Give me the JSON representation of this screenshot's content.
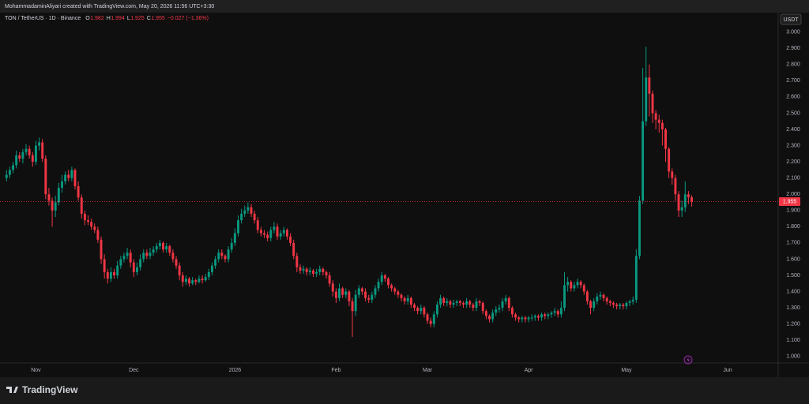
{
  "header": {
    "attribution": "MohammadaminAliyari created with TradingView.com, May 20, 2026 11:56 UTC+3:30"
  },
  "footer": {
    "brand": "TradingView"
  },
  "chart_data": {
    "type": "candlestick",
    "title": "TON / TetherUS · 1D · Binance",
    "legend_labels": [
      "O",
      "H",
      "L",
      "C"
    ],
    "change_label": "−0.027 (−1.36%)",
    "currency": "USDT",
    "up_color": "#089981",
    "down_color": "#f23645",
    "grid": false,
    "xlim": [
      -2,
      236.5
    ],
    "xticks": [
      {
        "value": 9,
        "label": "Nov"
      },
      {
        "value": 39,
        "label": "Dec"
      },
      {
        "value": 70,
        "label": "2026"
      },
      {
        "value": 101,
        "label": "Feb"
      },
      {
        "value": 129,
        "label": "Mar"
      },
      {
        "value": 160,
        "label": "Apr"
      },
      {
        "value": 190,
        "label": "May"
      },
      {
        "value": 221,
        "label": "Jun"
      }
    ],
    "ylim": [
      0.96,
      3.12
    ],
    "yticks": [
      {
        "value": 1,
        "label": "1.000"
      },
      {
        "value": 1.1,
        "label": "1.100"
      },
      {
        "value": 1.2,
        "label": "1.200"
      },
      {
        "value": 1.3,
        "label": "1.300"
      },
      {
        "value": 1.4,
        "label": "1.400"
      },
      {
        "value": 1.5,
        "label": "1.500"
      },
      {
        "value": 1.6,
        "label": "1.600"
      },
      {
        "value": 1.7,
        "label": "1.700"
      },
      {
        "value": 1.8,
        "label": "1.800"
      },
      {
        "value": 1.9,
        "label": "1.900"
      },
      {
        "value": 2,
        "label": "2.000"
      },
      {
        "value": 2.1,
        "label": "2.100"
      },
      {
        "value": 2.2,
        "label": "2.200"
      },
      {
        "value": 2.3,
        "label": "2.300"
      },
      {
        "value": 2.4,
        "label": "2.400"
      },
      {
        "value": 2.5,
        "label": "2.500"
      },
      {
        "value": 2.6,
        "label": "2.600"
      },
      {
        "value": 2.7,
        "label": "2.700"
      },
      {
        "value": 2.8,
        "label": "2.800"
      },
      {
        "value": 2.9,
        "label": "2.900"
      },
      {
        "value": 3,
        "label": "3.000"
      }
    ],
    "open": [
      2.1,
      2.12,
      2.15,
      2.18,
      2.24,
      2.22,
      2.26,
      2.28,
      2.24,
      2.2,
      2.3,
      2.32,
      2.22,
      2.0,
      1.96,
      1.9,
      1.95,
      2.04,
      2.08,
      2.12,
      2.1,
      2.15,
      2.05,
      1.98,
      1.88,
      1.84,
      1.83,
      1.8,
      1.78,
      1.72,
      1.6,
      1.52,
      1.48,
      1.52,
      1.5,
      1.56,
      1.6,
      1.62,
      1.64,
      1.58,
      1.52,
      1.55,
      1.6,
      1.64,
      1.62,
      1.64,
      1.66,
      1.68,
      1.7,
      1.66,
      1.68,
      1.64,
      1.6,
      1.56,
      1.5,
      1.46,
      1.48,
      1.45,
      1.47,
      1.46,
      1.48,
      1.47,
      1.49,
      1.52,
      1.56,
      1.6,
      1.64,
      1.62,
      1.6,
      1.66,
      1.7,
      1.76,
      1.84,
      1.88,
      1.9,
      1.92,
      1.88,
      1.84,
      1.78,
      1.76,
      1.75,
      1.73,
      1.78,
      1.8,
      1.74,
      1.76,
      1.78,
      1.74,
      1.7,
      1.62,
      1.55,
      1.53,
      1.54,
      1.52,
      1.53,
      1.51,
      1.52,
      1.54,
      1.52,
      1.5,
      1.45,
      1.4,
      1.36,
      1.42,
      1.38,
      1.4,
      1.34,
      1.28,
      1.38,
      1.42,
      1.4,
      1.36,
      1.35,
      1.38,
      1.42,
      1.46,
      1.5,
      1.48,
      1.44,
      1.42,
      1.4,
      1.38,
      1.36,
      1.34,
      1.36,
      1.32,
      1.3,
      1.28,
      1.3,
      1.26,
      1.22,
      1.2,
      1.26,
      1.32,
      1.36,
      1.33,
      1.34,
      1.32,
      1.33,
      1.34,
      1.33,
      1.32,
      1.34,
      1.32,
      1.3,
      1.34,
      1.33,
      1.28,
      1.25,
      1.23,
      1.27,
      1.29,
      1.3,
      1.34,
      1.36,
      1.3,
      1.26,
      1.24,
      1.23,
      1.24,
      1.23,
      1.24,
      1.24,
      1.25,
      1.24,
      1.26,
      1.25,
      1.26,
      1.27,
      1.28,
      1.26,
      1.3,
      1.44,
      1.46,
      1.42,
      1.44,
      1.46,
      1.44,
      1.4,
      1.34,
      1.3,
      1.34,
      1.37,
      1.38,
      1.36,
      1.34,
      1.33,
      1.32,
      1.31,
      1.32,
      1.31,
      1.33,
      1.34,
      1.35,
      1.62,
      1.96,
      2.45,
      2.72,
      2.62,
      2.5,
      2.46,
      2.44,
      2.4,
      2.28,
      2.14,
      2.1,
      2.0,
      1.9,
      1.92,
      2.0,
      1.982
    ],
    "high": [
      2.15,
      2.17,
      2.2,
      2.27,
      2.26,
      2.28,
      2.31,
      2.3,
      2.26,
      2.33,
      2.35,
      2.34,
      2.24,
      2.04,
      1.98,
      1.99,
      2.07,
      2.12,
      2.14,
      2.15,
      2.17,
      2.16,
      2.08,
      2.0,
      1.9,
      1.87,
      1.85,
      1.82,
      1.8,
      1.74,
      1.63,
      1.54,
      1.55,
      1.54,
      1.59,
      1.62,
      1.64,
      1.67,
      1.66,
      1.6,
      1.58,
      1.63,
      1.66,
      1.66,
      1.67,
      1.68,
      1.7,
      1.72,
      1.71,
      1.7,
      1.69,
      1.66,
      1.62,
      1.58,
      1.52,
      1.5,
      1.49,
      1.49,
      1.48,
      1.5,
      1.5,
      1.51,
      1.54,
      1.58,
      1.62,
      1.66,
      1.66,
      1.63,
      1.68,
      1.73,
      1.79,
      1.87,
      1.91,
      1.93,
      1.95,
      1.94,
      1.9,
      1.86,
      1.8,
      1.78,
      1.77,
      1.8,
      1.83,
      1.82,
      1.78,
      1.8,
      1.79,
      1.76,
      1.72,
      1.64,
      1.57,
      1.56,
      1.55,
      1.55,
      1.54,
      1.54,
      1.56,
      1.55,
      1.53,
      1.52,
      1.47,
      1.42,
      1.45,
      1.43,
      1.42,
      1.41,
      1.36,
      1.41,
      1.44,
      1.43,
      1.42,
      1.38,
      1.4,
      1.44,
      1.48,
      1.52,
      1.51,
      1.49,
      1.45,
      1.43,
      1.41,
      1.39,
      1.37,
      1.38,
      1.37,
      1.33,
      1.31,
      1.32,
      1.31,
      1.27,
      1.24,
      1.28,
      1.34,
      1.38,
      1.37,
      1.36,
      1.35,
      1.35,
      1.35,
      1.35,
      1.34,
      1.36,
      1.35,
      1.33,
      1.36,
      1.35,
      1.34,
      1.29,
      1.26,
      1.29,
      1.31,
      1.32,
      1.36,
      1.38,
      1.37,
      1.31,
      1.27,
      1.25,
      1.25,
      1.25,
      1.25,
      1.26,
      1.26,
      1.26,
      1.27,
      1.27,
      1.27,
      1.28,
      1.3,
      1.29,
      1.34,
      1.52,
      1.49,
      1.47,
      1.46,
      1.48,
      1.47,
      1.45,
      1.41,
      1.35,
      1.36,
      1.39,
      1.4,
      1.39,
      1.37,
      1.35,
      1.34,
      1.33,
      1.33,
      1.33,
      1.34,
      1.35,
      1.37,
      1.66,
      1.99,
      2.78,
      2.91,
      2.8,
      2.64,
      2.52,
      2.49,
      2.46,
      2.41,
      2.29,
      2.16,
      2.12,
      2.02,
      1.96,
      2.08,
      2.02,
      1.994
    ],
    "low": [
      2.08,
      2.1,
      2.13,
      2.16,
      2.2,
      2.19,
      2.24,
      2.22,
      2.17,
      2.18,
      2.27,
      2.2,
      1.97,
      1.93,
      1.8,
      1.86,
      1.93,
      2.01,
      2.06,
      2.08,
      2.08,
      2.03,
      1.96,
      1.85,
      1.81,
      1.81,
      1.78,
      1.76,
      1.7,
      1.57,
      1.48,
      1.45,
      1.46,
      1.48,
      1.48,
      1.54,
      1.58,
      1.6,
      1.55,
      1.49,
      1.5,
      1.53,
      1.58,
      1.6,
      1.6,
      1.62,
      1.64,
      1.66,
      1.64,
      1.64,
      1.62,
      1.58,
      1.54,
      1.47,
      1.43,
      1.44,
      1.43,
      1.44,
      1.44,
      1.45,
      1.45,
      1.46,
      1.47,
      1.5,
      1.54,
      1.58,
      1.6,
      1.58,
      1.58,
      1.64,
      1.68,
      1.74,
      1.82,
      1.86,
      1.88,
      1.86,
      1.82,
      1.76,
      1.74,
      1.73,
      1.71,
      1.71,
      1.76,
      1.72,
      1.72,
      1.74,
      1.72,
      1.68,
      1.6,
      1.52,
      1.51,
      1.51,
      1.5,
      1.5,
      1.49,
      1.49,
      1.5,
      1.5,
      1.48,
      1.43,
      1.37,
      1.33,
      1.34,
      1.36,
      1.36,
      1.31,
      1.12,
      1.25,
      1.36,
      1.38,
      1.34,
      1.33,
      1.33,
      1.36,
      1.4,
      1.44,
      1.46,
      1.42,
      1.4,
      1.38,
      1.36,
      1.34,
      1.32,
      1.32,
      1.3,
      1.28,
      1.26,
      1.26,
      1.24,
      1.2,
      1.18,
      1.18,
      1.24,
      1.3,
      1.31,
      1.31,
      1.3,
      1.3,
      1.31,
      1.31,
      1.3,
      1.3,
      1.3,
      1.28,
      1.28,
      1.31,
      1.26,
      1.23,
      1.21,
      1.21,
      1.25,
      1.27,
      1.28,
      1.32,
      1.28,
      1.24,
      1.22,
      1.21,
      1.21,
      1.21,
      1.21,
      1.22,
      1.22,
      1.22,
      1.22,
      1.23,
      1.23,
      1.24,
      1.25,
      1.24,
      1.24,
      1.28,
      1.4,
      1.4,
      1.4,
      1.42,
      1.42,
      1.38,
      1.32,
      1.26,
      1.28,
      1.32,
      1.35,
      1.34,
      1.32,
      1.31,
      1.3,
      1.29,
      1.29,
      1.29,
      1.29,
      1.31,
      1.32,
      1.33,
      1.6,
      1.94,
      2.42,
      2.48,
      2.44,
      2.4,
      2.38,
      2.3,
      2.2,
      2.1,
      2.06,
      1.96,
      1.86,
      1.86,
      1.89,
      1.94,
      1.925
    ],
    "close": [
      2.12,
      2.15,
      2.18,
      2.24,
      2.22,
      2.26,
      2.28,
      2.24,
      2.2,
      2.3,
      2.32,
      2.22,
      2.0,
      1.96,
      1.9,
      1.95,
      2.04,
      2.08,
      2.12,
      2.1,
      2.15,
      2.05,
      1.98,
      1.88,
      1.84,
      1.83,
      1.8,
      1.78,
      1.72,
      1.6,
      1.52,
      1.48,
      1.52,
      1.5,
      1.56,
      1.6,
      1.62,
      1.64,
      1.58,
      1.52,
      1.55,
      1.6,
      1.64,
      1.62,
      1.64,
      1.66,
      1.68,
      1.7,
      1.66,
      1.68,
      1.64,
      1.6,
      1.56,
      1.5,
      1.46,
      1.48,
      1.45,
      1.47,
      1.46,
      1.48,
      1.47,
      1.49,
      1.52,
      1.56,
      1.6,
      1.64,
      1.62,
      1.6,
      1.66,
      1.7,
      1.76,
      1.84,
      1.88,
      1.9,
      1.92,
      1.88,
      1.84,
      1.78,
      1.76,
      1.75,
      1.73,
      1.78,
      1.8,
      1.74,
      1.76,
      1.78,
      1.74,
      1.7,
      1.62,
      1.55,
      1.53,
      1.54,
      1.52,
      1.53,
      1.51,
      1.52,
      1.54,
      1.52,
      1.5,
      1.45,
      1.4,
      1.36,
      1.42,
      1.38,
      1.4,
      1.34,
      1.28,
      1.38,
      1.42,
      1.4,
      1.36,
      1.35,
      1.38,
      1.42,
      1.46,
      1.5,
      1.48,
      1.44,
      1.42,
      1.4,
      1.38,
      1.36,
      1.34,
      1.36,
      1.32,
      1.3,
      1.28,
      1.3,
      1.26,
      1.22,
      1.2,
      1.26,
      1.32,
      1.36,
      1.33,
      1.34,
      1.32,
      1.33,
      1.34,
      1.33,
      1.32,
      1.34,
      1.32,
      1.3,
      1.34,
      1.33,
      1.28,
      1.25,
      1.23,
      1.27,
      1.29,
      1.3,
      1.34,
      1.36,
      1.3,
      1.26,
      1.24,
      1.23,
      1.24,
      1.23,
      1.24,
      1.24,
      1.25,
      1.24,
      1.26,
      1.25,
      1.26,
      1.27,
      1.28,
      1.26,
      1.3,
      1.44,
      1.46,
      1.42,
      1.44,
      1.46,
      1.44,
      1.4,
      1.34,
      1.3,
      1.34,
      1.37,
      1.38,
      1.36,
      1.34,
      1.33,
      1.32,
      1.31,
      1.32,
      1.31,
      1.33,
      1.34,
      1.35,
      1.62,
      1.96,
      2.45,
      2.72,
      2.62,
      2.5,
      2.46,
      2.44,
      2.4,
      2.28,
      2.14,
      2.1,
      2.0,
      1.9,
      1.92,
      2.0,
      1.982,
      1.955
    ]
  }
}
